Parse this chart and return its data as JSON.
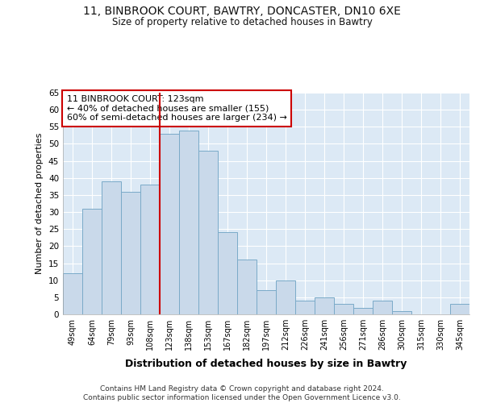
{
  "title_line1": "11, BINBROOK COURT, BAWTRY, DONCASTER, DN10 6XE",
  "title_line2": "Size of property relative to detached houses in Bawtry",
  "xlabel": "Distribution of detached houses by size in Bawtry",
  "ylabel": "Number of detached properties",
  "categories": [
    "49sqm",
    "64sqm",
    "79sqm",
    "93sqm",
    "108sqm",
    "123sqm",
    "138sqm",
    "153sqm",
    "167sqm",
    "182sqm",
    "197sqm",
    "212sqm",
    "226sqm",
    "241sqm",
    "256sqm",
    "271sqm",
    "286sqm",
    "300sqm",
    "315sqm",
    "330sqm",
    "345sqm"
  ],
  "values": [
    12,
    31,
    39,
    36,
    38,
    53,
    54,
    48,
    24,
    16,
    7,
    10,
    4,
    5,
    3,
    2,
    4,
    1,
    0,
    0,
    3
  ],
  "bar_color": "#c9d9ea",
  "bar_edge_color": "#7aaac8",
  "highlight_index": 5,
  "highlight_line_color": "#cc0000",
  "ylim": [
    0,
    65
  ],
  "yticks": [
    0,
    5,
    10,
    15,
    20,
    25,
    30,
    35,
    40,
    45,
    50,
    55,
    60,
    65
  ],
  "annotation_text": "11 BINBROOK COURT: 123sqm\n← 40% of detached houses are smaller (155)\n60% of semi-detached houses are larger (234) →",
  "annotation_box_color": "#ffffff",
  "annotation_box_edge_color": "#cc0000",
  "footer_text": "Contains HM Land Registry data © Crown copyright and database right 2024.\nContains public sector information licensed under the Open Government Licence v3.0.",
  "fig_background_color": "#ffffff",
  "plot_background_color": "#dce9f5",
  "grid_color": "#ffffff"
}
